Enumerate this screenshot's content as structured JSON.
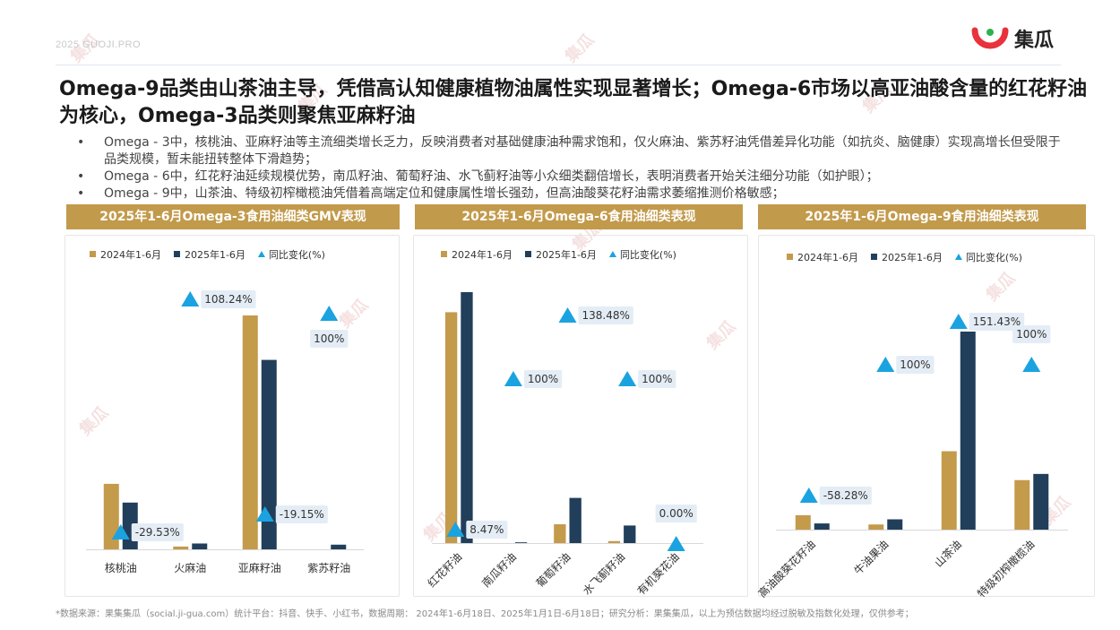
{
  "header": {
    "topline": "2025  GUOJI.PRO",
    "logo_text": "集瓜"
  },
  "title": "Omega-9品类由山茶油主导，凭借高认知健康植物油属性实现显著增长；Omega-6市场以高亚油酸含量的红花籽油为核心，Omega-3品类则聚焦亚麻籽油",
  "bullets": [
    "Omega - 3中，核桃油、亚麻籽油等主流细类增长乏力，反映消费者对基础健康油种需求饱和，仅火麻油、紫苏籽油凭借差异化功能（如抗炎、脑健康）实现高增长但受限于品类规模，暂未能扭转整体下滑趋势；",
    "Omega - 6中，红花籽油延续规模优势，南瓜籽油、葡萄籽油、水飞蓟籽油等小众细类翻倍增长，表明消费者开始关注细分功能（如护眼）；",
    "Omega - 9中，山茶油、特级初榨橄榄油凭借着高端定位和健康属性增长强劲，但高油酸葵花籽油需求萎缩推测价格敏感；"
  ],
  "footnote": "*数据来源：果集集瓜（social.ji-gua.com）统计平台：抖音、快手、小红书，数据周期： 2024年1-6月18日、2025年1月1日-6月18日；研究分析：果集集瓜，以上为预估数据均经过脱敏及指数化处理，仅供参考；",
  "watermark": "集瓜",
  "colors": {
    "s2024": "#c49a4b",
    "s2025": "#213f5b",
    "yoy": "#1aa3e0",
    "label_bg": "#e4edf5"
  },
  "chart_data": [
    {
      "type": "bar",
      "title": "2025年1-6月Omega-3食用油细类GMV表现",
      "legend": [
        "2024年1-6月",
        "2025年1-6月",
        "同比变化(%)"
      ],
      "categories": [
        "核桃油",
        "火麻油",
        "亚麻籽油",
        "紫苏籽油"
      ],
      "series": [
        {
          "name": "2024年1-6月",
          "values": [
            28,
            1.2,
            100,
            0
          ]
        },
        {
          "name": "2025年1-6月",
          "values": [
            20,
            2.5,
            81,
            2
          ]
        }
      ],
      "yoy": [
        -29.53,
        108.24,
        -19.15,
        100
      ],
      "yoy_labels": [
        "-29.53%",
        "108.24%",
        "-19.15%",
        "100%"
      ],
      "label_rotated": false
    },
    {
      "type": "bar",
      "title": "2025年1-6月Omega-6食用油细类表现",
      "legend": [
        "2024年1-6月",
        "2025年1-6月",
        "同比变化(%)"
      ],
      "categories": [
        "红花籽油",
        "南瓜籽油",
        "葡萄籽油",
        "水飞蓟籽油",
        "有机葵花油"
      ],
      "series": [
        {
          "name": "2024年1-6月",
          "values": [
            92,
            0,
            7.5,
            0.8,
            0
          ]
        },
        {
          "name": "2025年1-6月",
          "values": [
            100,
            0.3,
            18,
            7,
            0
          ]
        }
      ],
      "yoy": [
        8.47,
        100,
        138.48,
        100,
        0.0
      ],
      "yoy_labels": [
        "8.47%",
        "100%",
        "138.48%",
        "100%",
        "0.00%"
      ],
      "label_rotated": true
    },
    {
      "type": "bar",
      "title": "2025年1-6月Omega-9食用油细类表现",
      "legend": [
        "2024年1-6月",
        "2025年1-6月",
        "同比变化(%)"
      ],
      "categories": [
        "高油酸葵花籽油",
        "牛油果油",
        "山茶油",
        "特级初榨橄榄油"
      ],
      "series": [
        {
          "name": "2024年1-6月",
          "values": [
            7,
            2.5,
            38,
            24
          ]
        },
        {
          "name": "2025年1-6月",
          "values": [
            3,
            5,
            96,
            27
          ]
        }
      ],
      "yoy": [
        -58.28,
        100,
        151.43,
        100
      ],
      "yoy_labels": [
        "-58.28%",
        "100%",
        "151.43%",
        "100%"
      ],
      "label_rotated": true
    }
  ]
}
